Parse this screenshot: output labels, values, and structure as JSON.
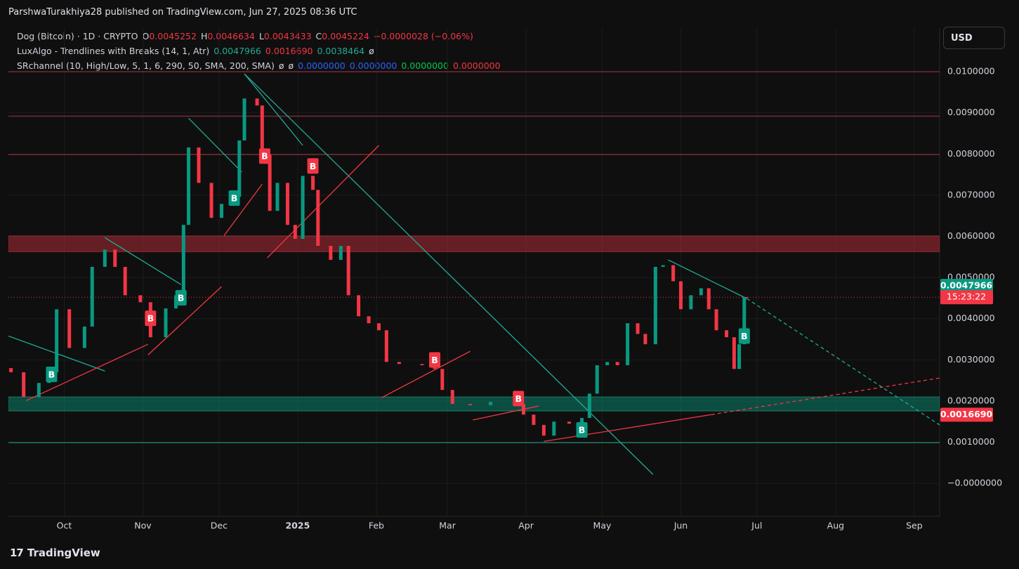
{
  "header": {
    "attribution": "ParshwaTurakhiya28 published on TradingView.com, Jun 27, 2025 08:36 UTC"
  },
  "chart_data": {
    "type": "candlestick",
    "legend": [
      [
        {
          "text": "Dog (Bitcoin) · 1D · CRYPTO",
          "color": "#d1d4dc"
        },
        {
          "text": "O",
          "color": "#d1d4dc"
        },
        {
          "text": "0.0045252",
          "color": "#f23645"
        },
        {
          "text": "H",
          "color": "#d1d4dc"
        },
        {
          "text": "0.0046634",
          "color": "#f23645"
        },
        {
          "text": "L",
          "color": "#d1d4dc"
        },
        {
          "text": "0.0043433",
          "color": "#f23645"
        },
        {
          "text": "C",
          "color": "#d1d4dc"
        },
        {
          "text": "0.0045224",
          "color": "#f23645"
        },
        {
          "text": "−0.0000028 (−0.06%)",
          "color": "#f23645"
        }
      ],
      [
        {
          "text": "LuxAlgo - Trendlines with Breaks (14, 1, Atr)",
          "color": "#d1d4dc"
        },
        {
          "text": "0.0047966",
          "color": "#22ab94"
        },
        {
          "text": "0.0016690",
          "color": "#f23645"
        },
        {
          "text": "0.0038464",
          "color": "#22ab94"
        },
        {
          "text": "ø",
          "color": "#d1d4dc"
        }
      ],
      [
        {
          "text": "SRchannel (10, High/Low, 5, 1, 6, 290, 50, SMA, 200, SMA)",
          "color": "#d1d4dc"
        },
        {
          "text": "ø",
          "color": "#d1d4dc"
        },
        {
          "text": "ø",
          "color": "#d1d4dc"
        },
        {
          "text": "0.0000000",
          "color": "#2962ff"
        },
        {
          "text": "0.0000000",
          "color": "#2962ff"
        },
        {
          "text": "0.0000000",
          "color": "#00c853"
        },
        {
          "text": "0.0000000",
          "color": "#f23645"
        }
      ]
    ],
    "currency": "USD",
    "x": [
      -21,
      -16,
      -10,
      -6,
      -3,
      2,
      8,
      11,
      16,
      20,
      24,
      30,
      34,
      40,
      44,
      47,
      49,
      53,
      58,
      62,
      66,
      69,
      71,
      76,
      78,
      81,
      84,
      88,
      91,
      94,
      98,
      100,
      105,
      109,
      112,
      116,
      120,
      124,
      127,
      132,
      141,
      146,
      149,
      153,
      160,
      168,
      178,
      181,
      185,
      189,
      193,
      199,
      204,
      207,
      210,
      214,
      218,
      222,
      226,
      229,
      233,
      236,
      240,
      243,
      247,
      251,
      254,
      257,
      261,
      264,
      266,
      268,
      269
    ],
    "open": [
      0.0028,
      0.0027,
      0.0021,
      0.00244,
      0.0027,
      0.00423,
      0.00329,
      0.00381,
      0.00526,
      0.00568,
      0.00526,
      0.00457,
      0.0044,
      0.00355,
      0.00425,
      0.00457,
      0.00628,
      0.00816,
      0.0073,
      0.00645,
      0.00679,
      0.00696,
      0.00833,
      0.00935,
      0.00918,
      0.00799,
      0.00662,
      0.0073,
      0.00628,
      0.00594,
      0.00747,
      0.00713,
      0.00577,
      0.00543,
      0.00577,
      0.00457,
      0.00406,
      0.00389,
      0.00372,
      0.00295,
      0.0029,
      0.00287,
      0.00278,
      0.00227,
      0.00193,
      0.0019,
      0.00198,
      0.00193,
      0.00167,
      0.00142,
      0.00116,
      0.0015,
      0.00145,
      0.00159,
      0.00218,
      0.00287,
      0.00295,
      0.00287,
      0.00389,
      0.00363,
      0.00338,
      0.00526,
      0.0053,
      0.00491,
      0.00423,
      0.00457,
      0.00474,
      0.00423,
      0.00372,
      0.00355,
      0.00278,
      0.00338,
      0.0045252
    ],
    "close": [
      0.0027,
      0.0021,
      0.00244,
      0.0027,
      0.00423,
      0.00329,
      0.00381,
      0.00526,
      0.00568,
      0.00526,
      0.00457,
      0.0044,
      0.00355,
      0.00425,
      0.00457,
      0.00628,
      0.00816,
      0.0073,
      0.00645,
      0.00679,
      0.00696,
      0.00833,
      0.00935,
      0.00918,
      0.00799,
      0.00662,
      0.0073,
      0.00628,
      0.00594,
      0.00747,
      0.00713,
      0.00577,
      0.00543,
      0.00577,
      0.00457,
      0.00406,
      0.00389,
      0.00372,
      0.00295,
      0.0029,
      0.00287,
      0.00278,
      0.00227,
      0.00193,
      0.0019,
      0.00198,
      0.00193,
      0.00167,
      0.00142,
      0.00116,
      0.0015,
      0.00145,
      0.00159,
      0.00218,
      0.00287,
      0.00295,
      0.00287,
      0.00389,
      0.00363,
      0.00338,
      0.00526,
      0.0053,
      0.00491,
      0.00423,
      0.00457,
      0.00474,
      0.00423,
      0.00372,
      0.00355,
      0.00278,
      0.00338,
      0.0045252,
      0.0045224
    ],
    "up_color": "#089981",
    "down_color": "#f23645",
    "xlim": [
      -22,
      345
    ],
    "xticks": [
      {
        "value": 0,
        "label": "Oct"
      },
      {
        "value": 31,
        "label": "Nov"
      },
      {
        "value": 61,
        "label": "Dec"
      },
      {
        "value": 92,
        "label": "2025",
        "bold": true
      },
      {
        "value": 123,
        "label": "Feb"
      },
      {
        "value": 151,
        "label": "Mar"
      },
      {
        "value": 182,
        "label": "Apr"
      },
      {
        "value": 212,
        "label": "May"
      },
      {
        "value": 243,
        "label": "Jun"
      },
      {
        "value": 273,
        "label": "Jul"
      },
      {
        "value": 304,
        "label": "Aug"
      },
      {
        "value": 335,
        "label": "Sep"
      }
    ],
    "ylim": [
      -0.0008,
      0.01106
    ],
    "yticks": [
      {
        "value": 0.01,
        "label": "0.0100000"
      },
      {
        "value": 0.009,
        "label": "0.0090000"
      },
      {
        "value": 0.008,
        "label": "0.0080000"
      },
      {
        "value": 0.007,
        "label": "0.0070000"
      },
      {
        "value": 0.006,
        "label": "0.0060000"
      },
      {
        "value": 0.005,
        "label": "0.0050000"
      },
      {
        "value": 0.004,
        "label": "0.0040000"
      },
      {
        "value": 0.003,
        "label": "0.0030000"
      },
      {
        "value": 0.002,
        "label": "0.0020000"
      },
      {
        "value": 0.001,
        "label": "0.0010000"
      },
      {
        "value": 0,
        "label": "−0.0000000"
      }
    ],
    "grid": true,
    "levels": [
      {
        "value": 0.01,
        "color": "#7a2a35"
      },
      {
        "value": 0.00892,
        "color": "#7a2a35"
      },
      {
        "value": 0.00799,
        "color": "#7a2a35"
      },
      {
        "value": 0.00099,
        "color": "#1f7a62"
      }
    ],
    "zones": [
      {
        "from": 0.00563,
        "to": 0.00601,
        "color": "rgba(242,54,69,0.38)",
        "edge": "#9a2a38"
      },
      {
        "from": 0.00176,
        "to": 0.0021,
        "color": "rgba(8,153,129,0.45)",
        "edge": "#1f7a62"
      }
    ],
    "trendlines": [
      {
        "x": [
          71,
          232
        ],
        "y": [
          0.00995,
          0.00022
        ],
        "color": "#22ab94",
        "dashed": false
      },
      {
        "x": [
          49,
          70
        ],
        "y": [
          0.00887,
          0.00756
        ],
        "color": "#22ab94",
        "dashed": false
      },
      {
        "x": [
          71,
          94
        ],
        "y": [
          0.00995,
          0.00821
        ],
        "color": "#22ab94",
        "dashed": false
      },
      {
        "x": [
          16,
          46
        ],
        "y": [
          0.00597,
          0.00483
        ],
        "color": "#22ab94",
        "dashed": false
      },
      {
        "x": [
          -22,
          16
        ],
        "y": [
          0.00358,
          0.00273
        ],
        "color": "#22ab94",
        "dashed": false
      },
      {
        "x": [
          -15,
          33
        ],
        "y": [
          0.00201,
          0.00338
        ],
        "color": "#f23645",
        "dashed": false
      },
      {
        "x": [
          33,
          62
        ],
        "y": [
          0.00312,
          0.00478
        ],
        "color": "#f23645",
        "dashed": false
      },
      {
        "x": [
          63,
          78
        ],
        "y": [
          0.00602,
          0.00727
        ],
        "color": "#f23645",
        "dashed": false
      },
      {
        "x": [
          80,
          124
        ],
        "y": [
          0.00548,
          0.00821
        ],
        "color": "#f23645",
        "dashed": false
      },
      {
        "x": [
          125,
          160
        ],
        "y": [
          0.00208,
          0.00321
        ],
        "color": "#f23645",
        "dashed": false
      },
      {
        "x": [
          161,
          187
        ],
        "y": [
          0.00154,
          0.00188
        ],
        "color": "#f23645",
        "dashed": false
      },
      {
        "x": [
          189,
          255
        ],
        "y": [
          0.00102,
          0.00167
        ],
        "color": "#f23645",
        "dashed": false
      },
      {
        "x": [
          255,
          345
        ],
        "y": [
          0.00167,
          0.00256
        ],
        "color": "#f23645",
        "dashed": true
      },
      {
        "x": [
          238,
          269
        ],
        "y": [
          0.00543,
          0.00449
        ],
        "color": "#22ab94",
        "dashed": false
      },
      {
        "x": [
          269,
          345
        ],
        "y": [
          0.00449,
          0.00142
        ],
        "color": "#22ab94",
        "dashed": true
      }
    ],
    "markers": [
      {
        "x": 79,
        "y": 0.00795,
        "text": "B",
        "color": "#f23645"
      },
      {
        "x": 98,
        "y": 0.00771,
        "text": "B",
        "color": "#f23645"
      },
      {
        "x": 34,
        "y": 0.00401,
        "text": "B",
        "color": "#f23645"
      },
      {
        "x": 146,
        "y": 0.003,
        "text": "B",
        "color": "#f23645"
      },
      {
        "x": 179,
        "y": 0.00206,
        "text": "B",
        "color": "#f23645"
      },
      {
        "x": -5,
        "y": 0.00265,
        "text": "B",
        "color": "#089981"
      },
      {
        "x": 46,
        "y": 0.00451,
        "text": "B",
        "color": "#089981"
      },
      {
        "x": 67,
        "y": 0.00693,
        "text": "B",
        "color": "#089981"
      },
      {
        "x": 204,
        "y": 0.0013,
        "text": "B",
        "color": "#089981"
      },
      {
        "x": 268,
        "y": 0.00358,
        "text": "B",
        "color": "#089981"
      }
    ],
    "price_labels": [
      {
        "value": 0.0047966,
        "label": "0.0047966",
        "color": "#089981"
      },
      {
        "value": 0.001669,
        "label": "0.0016690",
        "color": "#f23645"
      }
    ],
    "countdown": "15:23:22",
    "countdown_color": "#f23645"
  },
  "footer": {
    "brand": "TradingView"
  }
}
